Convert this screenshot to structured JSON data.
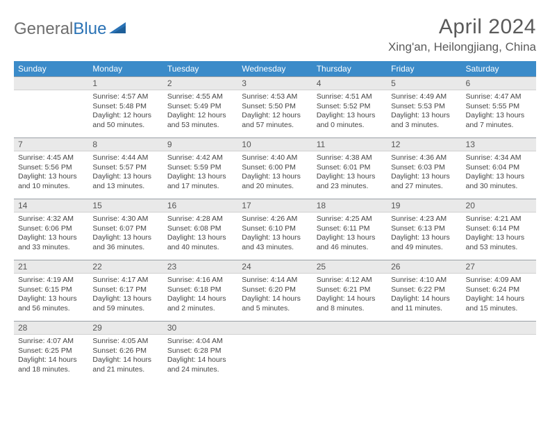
{
  "logo": {
    "word1": "General",
    "word2": "Blue"
  },
  "title": "April 2024",
  "location": "Xing'an, Heilongjiang, China",
  "colors": {
    "header_bg": "#3b8bc9",
    "header_text": "#ffffff",
    "daynum_bg": "#e9e9e9",
    "daynum_border_top": "#9aa0a6",
    "body_text": "#444444",
    "title_text": "#5a5a5a"
  },
  "weekdays": [
    "Sunday",
    "Monday",
    "Tuesday",
    "Wednesday",
    "Thursday",
    "Friday",
    "Saturday"
  ],
  "weeks": [
    [
      null,
      {
        "n": "1",
        "sunrise": "4:57 AM",
        "sunset": "5:48 PM",
        "daylight": "12 hours and 50 minutes."
      },
      {
        "n": "2",
        "sunrise": "4:55 AM",
        "sunset": "5:49 PM",
        "daylight": "12 hours and 53 minutes."
      },
      {
        "n": "3",
        "sunrise": "4:53 AM",
        "sunset": "5:50 PM",
        "daylight": "12 hours and 57 minutes."
      },
      {
        "n": "4",
        "sunrise": "4:51 AM",
        "sunset": "5:52 PM",
        "daylight": "13 hours and 0 minutes."
      },
      {
        "n": "5",
        "sunrise": "4:49 AM",
        "sunset": "5:53 PM",
        "daylight": "13 hours and 3 minutes."
      },
      {
        "n": "6",
        "sunrise": "4:47 AM",
        "sunset": "5:55 PM",
        "daylight": "13 hours and 7 minutes."
      }
    ],
    [
      {
        "n": "7",
        "sunrise": "4:45 AM",
        "sunset": "5:56 PM",
        "daylight": "13 hours and 10 minutes."
      },
      {
        "n": "8",
        "sunrise": "4:44 AM",
        "sunset": "5:57 PM",
        "daylight": "13 hours and 13 minutes."
      },
      {
        "n": "9",
        "sunrise": "4:42 AM",
        "sunset": "5:59 PM",
        "daylight": "13 hours and 17 minutes."
      },
      {
        "n": "10",
        "sunrise": "4:40 AM",
        "sunset": "6:00 PM",
        "daylight": "13 hours and 20 minutes."
      },
      {
        "n": "11",
        "sunrise": "4:38 AM",
        "sunset": "6:01 PM",
        "daylight": "13 hours and 23 minutes."
      },
      {
        "n": "12",
        "sunrise": "4:36 AM",
        "sunset": "6:03 PM",
        "daylight": "13 hours and 27 minutes."
      },
      {
        "n": "13",
        "sunrise": "4:34 AM",
        "sunset": "6:04 PM",
        "daylight": "13 hours and 30 minutes."
      }
    ],
    [
      {
        "n": "14",
        "sunrise": "4:32 AM",
        "sunset": "6:06 PM",
        "daylight": "13 hours and 33 minutes."
      },
      {
        "n": "15",
        "sunrise": "4:30 AM",
        "sunset": "6:07 PM",
        "daylight": "13 hours and 36 minutes."
      },
      {
        "n": "16",
        "sunrise": "4:28 AM",
        "sunset": "6:08 PM",
        "daylight": "13 hours and 40 minutes."
      },
      {
        "n": "17",
        "sunrise": "4:26 AM",
        "sunset": "6:10 PM",
        "daylight": "13 hours and 43 minutes."
      },
      {
        "n": "18",
        "sunrise": "4:25 AM",
        "sunset": "6:11 PM",
        "daylight": "13 hours and 46 minutes."
      },
      {
        "n": "19",
        "sunrise": "4:23 AM",
        "sunset": "6:13 PM",
        "daylight": "13 hours and 49 minutes."
      },
      {
        "n": "20",
        "sunrise": "4:21 AM",
        "sunset": "6:14 PM",
        "daylight": "13 hours and 53 minutes."
      }
    ],
    [
      {
        "n": "21",
        "sunrise": "4:19 AM",
        "sunset": "6:15 PM",
        "daylight": "13 hours and 56 minutes."
      },
      {
        "n": "22",
        "sunrise": "4:17 AM",
        "sunset": "6:17 PM",
        "daylight": "13 hours and 59 minutes."
      },
      {
        "n": "23",
        "sunrise": "4:16 AM",
        "sunset": "6:18 PM",
        "daylight": "14 hours and 2 minutes."
      },
      {
        "n": "24",
        "sunrise": "4:14 AM",
        "sunset": "6:20 PM",
        "daylight": "14 hours and 5 minutes."
      },
      {
        "n": "25",
        "sunrise": "4:12 AM",
        "sunset": "6:21 PM",
        "daylight": "14 hours and 8 minutes."
      },
      {
        "n": "26",
        "sunrise": "4:10 AM",
        "sunset": "6:22 PM",
        "daylight": "14 hours and 11 minutes."
      },
      {
        "n": "27",
        "sunrise": "4:09 AM",
        "sunset": "6:24 PM",
        "daylight": "14 hours and 15 minutes."
      }
    ],
    [
      {
        "n": "28",
        "sunrise": "4:07 AM",
        "sunset": "6:25 PM",
        "daylight": "14 hours and 18 minutes."
      },
      {
        "n": "29",
        "sunrise": "4:05 AM",
        "sunset": "6:26 PM",
        "daylight": "14 hours and 21 minutes."
      },
      {
        "n": "30",
        "sunrise": "4:04 AM",
        "sunset": "6:28 PM",
        "daylight": "14 hours and 24 minutes."
      },
      null,
      null,
      null,
      null
    ]
  ],
  "labels": {
    "sunrise": "Sunrise:",
    "sunset": "Sunset:",
    "daylight": "Daylight:"
  }
}
